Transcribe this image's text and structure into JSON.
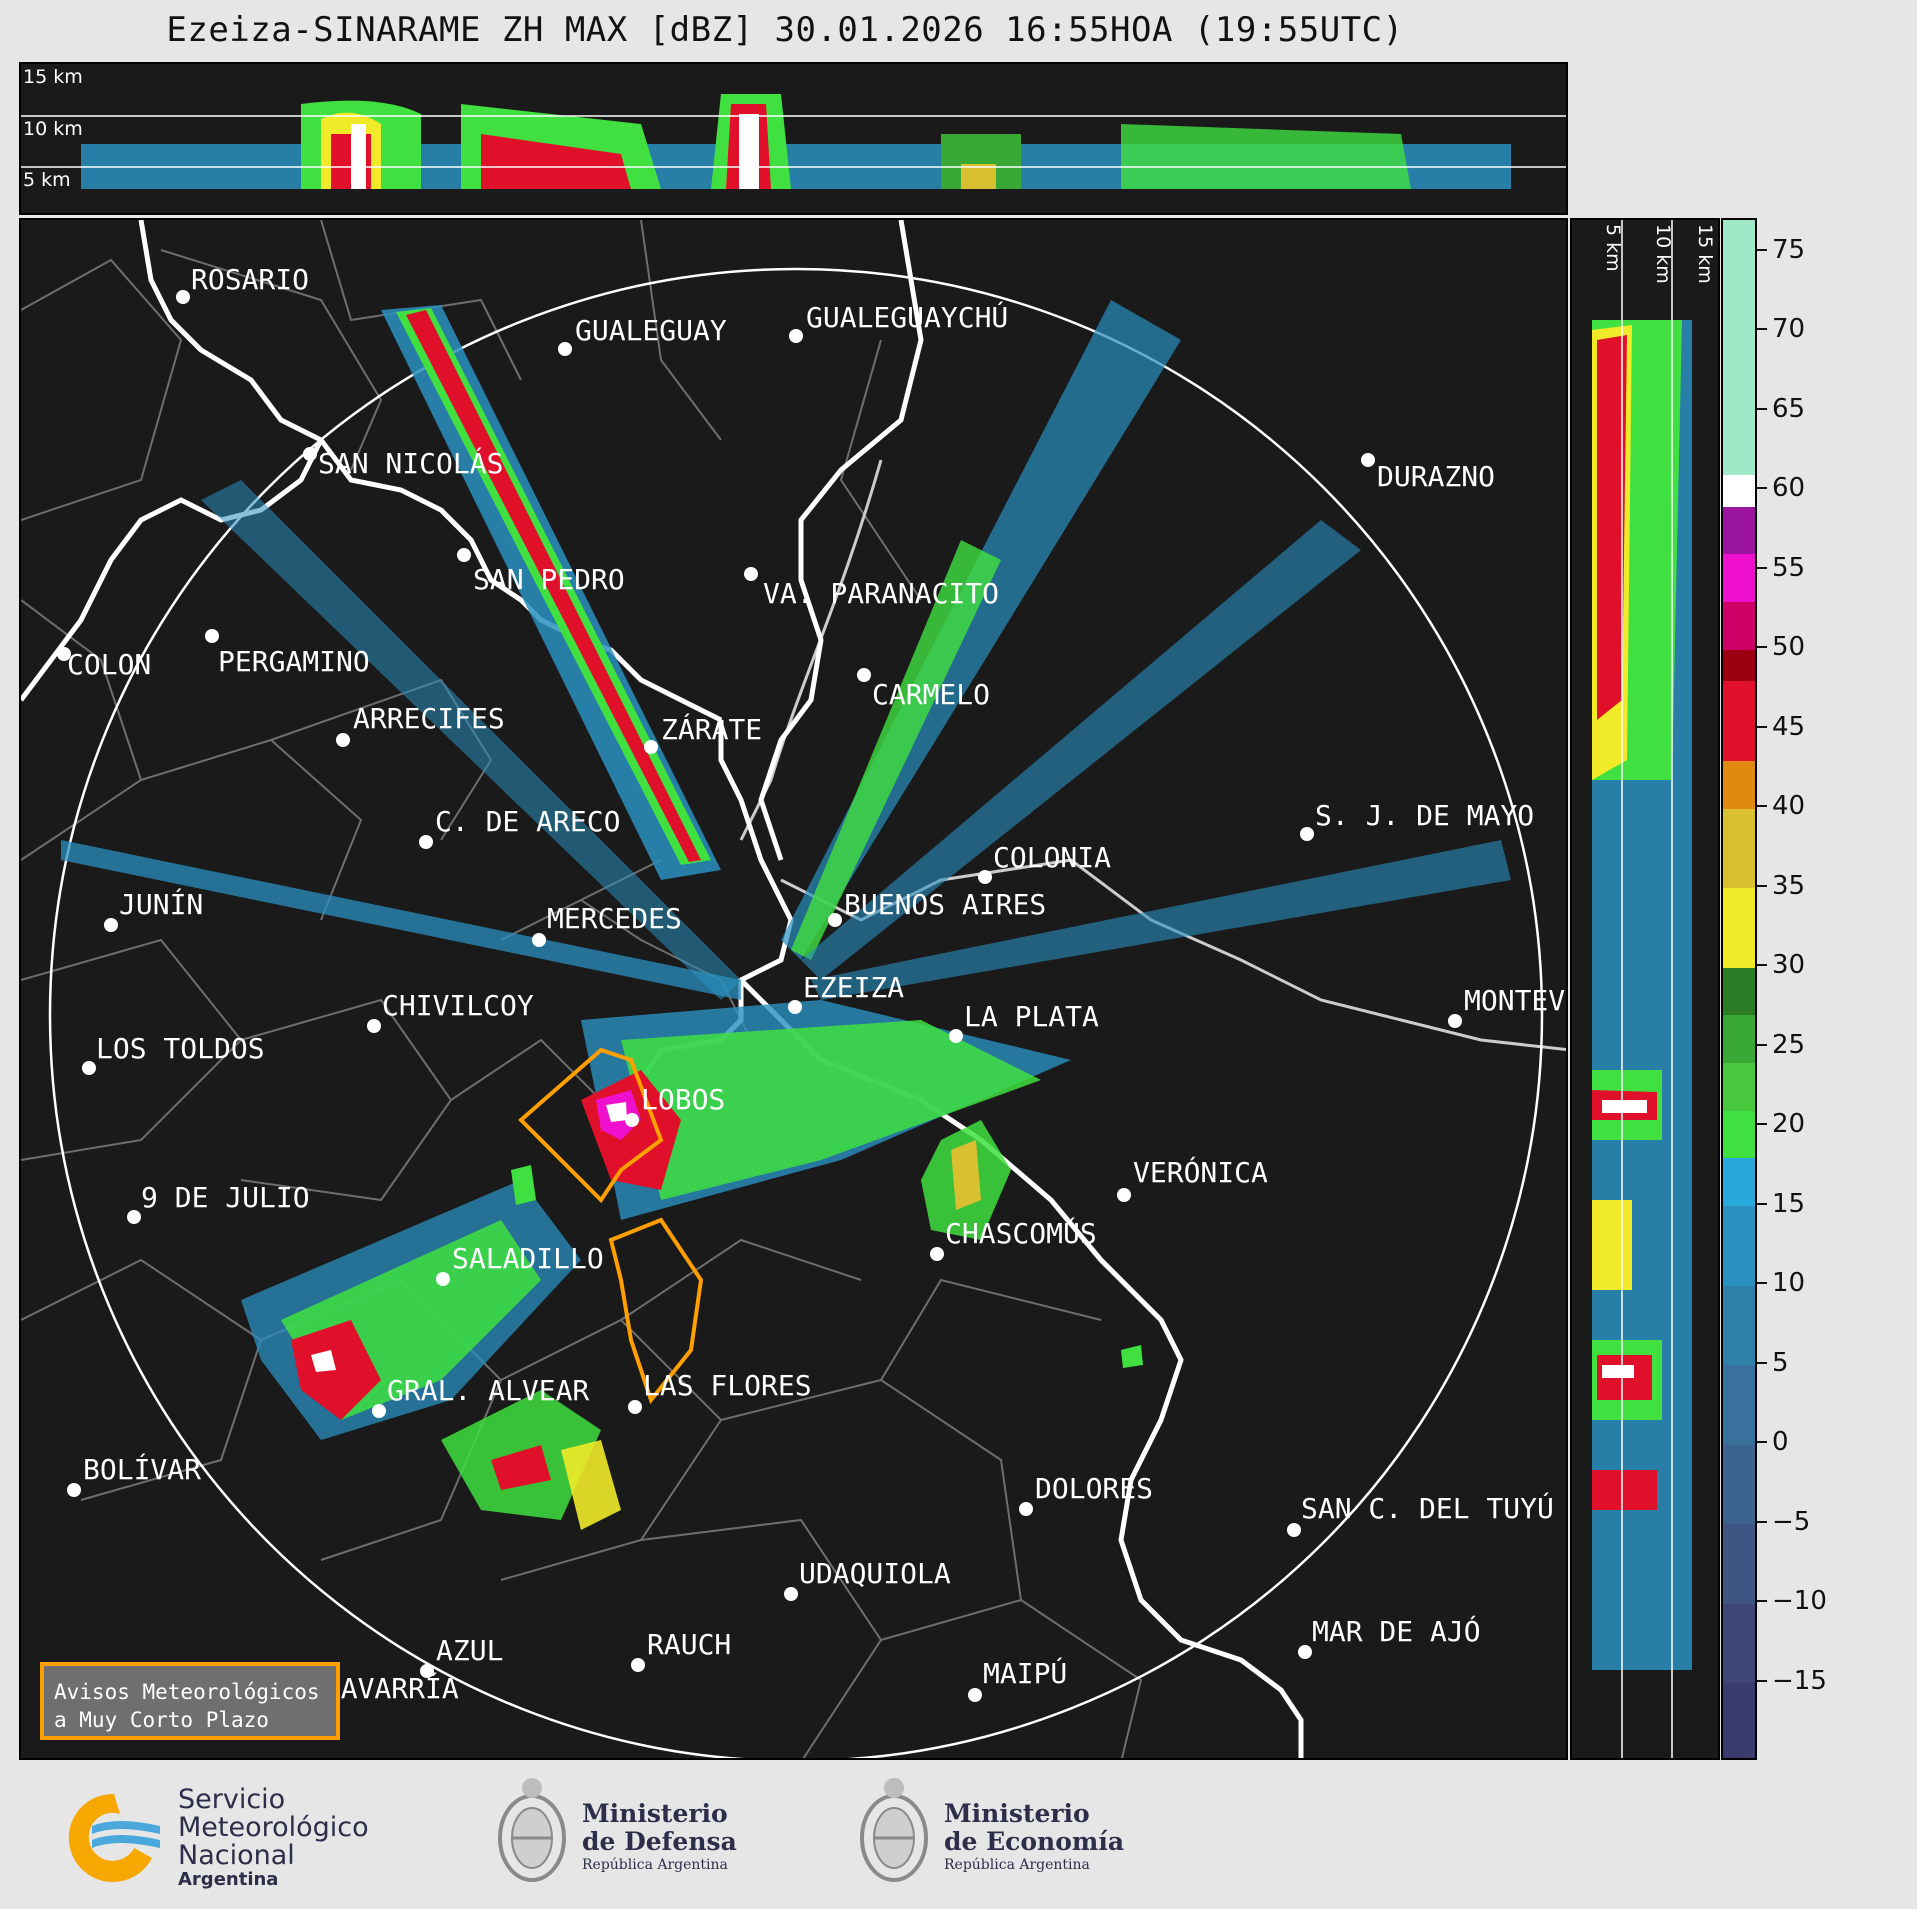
{
  "title": "Ezeiza-SINARAME ZH MAX [dBZ] 30.01.2026 16:55HOA (19:55UTC)",
  "top_panel": {
    "altitude_labels": [
      "15 km",
      "10 km",
      "5 km"
    ]
  },
  "right_panel": {
    "altitude_labels": [
      "5 km",
      "10 km",
      "15 km"
    ]
  },
  "colorbar": {
    "unit": "dBZ",
    "min": -20,
    "max": 77,
    "ticks": [
      "75",
      "70",
      "65",
      "60",
      "55",
      "50",
      "45",
      "40",
      "35",
      "30",
      "25",
      "20",
      "15",
      "10",
      "5",
      "0",
      "−5",
      "−10",
      "−15"
    ],
    "tick_values": [
      75,
      70,
      65,
      60,
      55,
      50,
      45,
      40,
      35,
      30,
      25,
      20,
      15,
      10,
      5,
      0,
      -5,
      -10,
      -15
    ],
    "segments": [
      {
        "from": -20,
        "to": -15,
        "color": "#3b3c6e"
      },
      {
        "from": -15,
        "to": -10,
        "color": "#3f4778"
      },
      {
        "from": -10,
        "to": -5,
        "color": "#3f5584"
      },
      {
        "from": -5,
        "to": 0,
        "color": "#3d6391"
      },
      {
        "from": 0,
        "to": 5,
        "color": "#37719c"
      },
      {
        "from": 5,
        "to": 10,
        "color": "#2f80a8"
      },
      {
        "from": 10,
        "to": 15,
        "color": "#2a90c0"
      },
      {
        "from": 15,
        "to": 18,
        "color": "#29a8dc"
      },
      {
        "from": 18,
        "to": 21,
        "color": "#40e040"
      },
      {
        "from": 21,
        "to": 24,
        "color": "#48c83c"
      },
      {
        "from": 24,
        "to": 27,
        "color": "#3aa835"
      },
      {
        "from": 27,
        "to": 30,
        "color": "#2b7d25"
      },
      {
        "from": 30,
        "to": 35,
        "color": "#f0ea28"
      },
      {
        "from": 35,
        "to": 40,
        "color": "#d8c030"
      },
      {
        "from": 40,
        "to": 43,
        "color": "#e08a10"
      },
      {
        "from": 43,
        "to": 48,
        "color": "#e0102a"
      },
      {
        "from": 48,
        "to": 50,
        "color": "#9c0010"
      },
      {
        "from": 50,
        "to": 53,
        "color": "#cc0066"
      },
      {
        "from": 53,
        "to": 56,
        "color": "#ee10cc"
      },
      {
        "from": 56,
        "to": 59,
        "color": "#9a14a0"
      },
      {
        "from": 59,
        "to": 61,
        "color": "#ffffff"
      },
      {
        "from": 61,
        "to": 77,
        "color": "#9fe8c8"
      }
    ]
  },
  "cities": [
    {
      "name": "ROSARIO"
    },
    {
      "name": "GUALEGUAYCHÚ"
    },
    {
      "name": "GUALEGUAY"
    },
    {
      "name": "SAN NICOLÁS"
    },
    {
      "name": "DURAZNO"
    },
    {
      "name": "SAN PEDRO"
    },
    {
      "name": "VA. PARANACITO"
    },
    {
      "name": "COLON"
    },
    {
      "name": "PERGAMINO"
    },
    {
      "name": "CARMELO"
    },
    {
      "name": "ARRECIFES"
    },
    {
      "name": "ZÁRATE"
    },
    {
      "name": "S. J. DE MAYO"
    },
    {
      "name": "C. DE ARECO"
    },
    {
      "name": "COLONIA"
    },
    {
      "name": "JUNÍN"
    },
    {
      "name": "BUENOS AIRES"
    },
    {
      "name": "MERCEDES"
    },
    {
      "name": "EZEIZA"
    },
    {
      "name": "MONTEVIDEO"
    },
    {
      "name": "CHIVILCOY"
    },
    {
      "name": "LA PLATA"
    },
    {
      "name": "LOS TOLDOS"
    },
    {
      "name": "LOBOS"
    },
    {
      "name": "VERÓNICA"
    },
    {
      "name": "9 DE JULIO"
    },
    {
      "name": "CHASCOMÚS"
    },
    {
      "name": "SALADILLO"
    },
    {
      "name": "GRAL. ALVEAR"
    },
    {
      "name": "LAS FLORES"
    },
    {
      "name": "BOLÍVAR"
    },
    {
      "name": "DOLORES"
    },
    {
      "name": "SAN C. DEL TUYÚ"
    },
    {
      "name": "UDAQUIOLA"
    },
    {
      "name": "AZUL"
    },
    {
      "name": "RAUCH"
    },
    {
      "name": "MAR DE AJÓ"
    },
    {
      "name": "OLAVARRÍA"
    },
    {
      "name": "MAIPÚ"
    }
  ],
  "legend": {
    "line1": "Avisos Meteorológicos",
    "line2": "a Muy Corto Plazo",
    "border_color": "#ff9f00"
  },
  "footer": {
    "smn": {
      "l1": "Servicio",
      "l2": "Meteorológico",
      "l3": "Nacional",
      "l4": "Argentina"
    },
    "defensa": {
      "l1": "Ministerio",
      "l2": "de Defensa",
      "l3": "República Argentina"
    },
    "economia": {
      "l1": "Ministerio",
      "l2": "de Economía",
      "l3": "República Argentina"
    }
  }
}
